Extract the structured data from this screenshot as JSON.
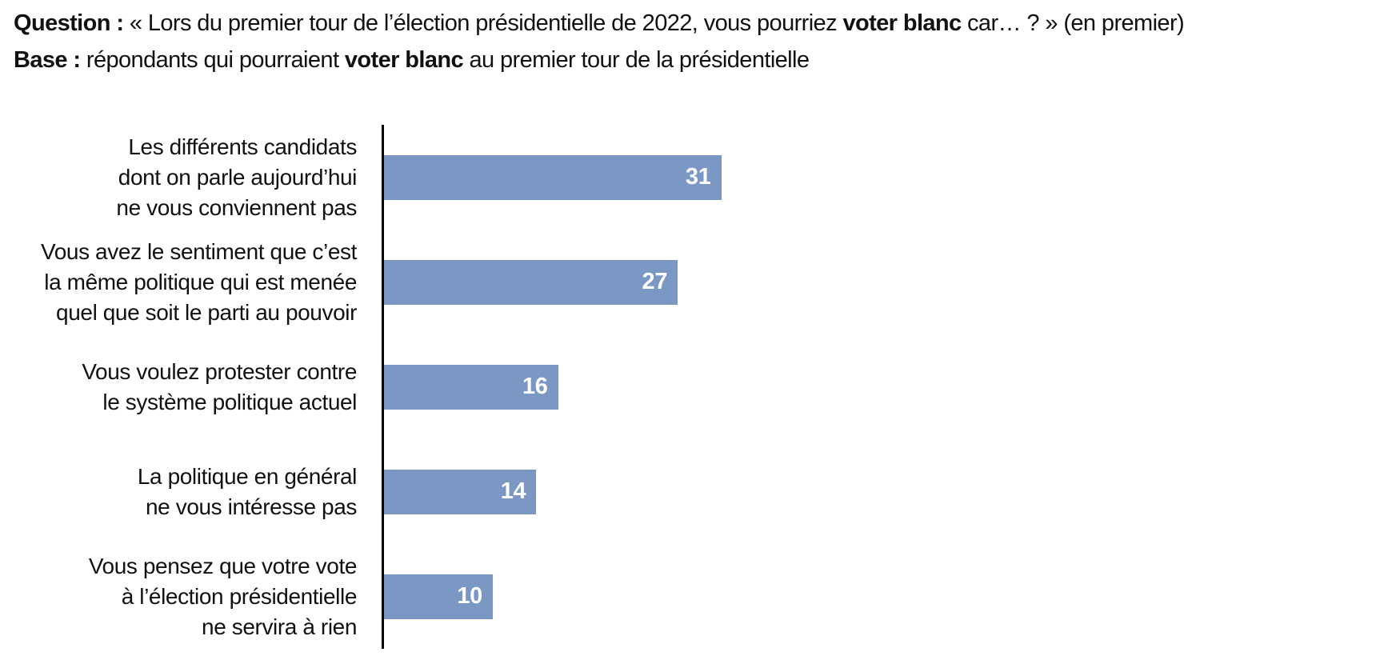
{
  "header": {
    "question_label": "Question : ",
    "question_before": "« Lors du premier tour de l’élection présidentielle de 2022, vous pourriez ",
    "question_bold": "voter blanc",
    "question_after": " car… ? » (en premier)",
    "base_label": "Base : ",
    "base_before": "répondants qui pourraient ",
    "base_bold": "voter blanc",
    "base_after": " au premier tour de la présidentielle"
  },
  "colors": {
    "bar": "#7b97c4",
    "axis": "#000000",
    "value_label": "#ffffff",
    "text": "#111111"
  },
  "chart_data": {
    "type": "bar",
    "orientation": "horizontal",
    "title": "",
    "xlabel": "",
    "ylabel": "",
    "xlim": [
      0,
      35
    ],
    "grid": false,
    "legend": false,
    "x_axis_ticks_visible": false,
    "value_labels_position": "inside-end",
    "categories": [
      "Les différents candidats dont on parle aujourd’hui ne vous conviennent pas",
      "Vous avez le sentiment que c’est la même politique qui est menée quel que soit le parti au pouvoir",
      "Vous voulez protester contre le système politique actuel",
      "La politique en général ne vous intéresse pas",
      "Vous pensez que votre vote à l’élection présidentielle ne servira à rien"
    ],
    "category_lines": [
      [
        "Les différents candidats",
        "dont on parle aujourd’hui",
        "ne vous conviennent pas"
      ],
      [
        "Vous avez le sentiment que c’est",
        "la même politique qui est menée",
        "quel que soit le parti au pouvoir"
      ],
      [
        "Vous voulez protester contre",
        "le système politique actuel"
      ],
      [
        "La politique en général",
        "ne vous intéresse pas"
      ],
      [
        "Vous pensez que votre vote",
        "à l’élection présidentielle",
        "ne servira à rien"
      ]
    ],
    "values": [
      31,
      27,
      16,
      14,
      10
    ]
  }
}
